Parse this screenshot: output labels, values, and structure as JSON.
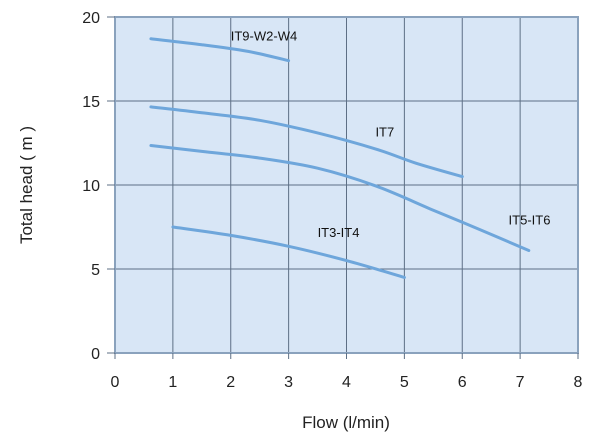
{
  "chart_data": {
    "type": "line",
    "xlabel": "Flow (l/min)",
    "ylabel": "Total head ( m )",
    "xlim": [
      0,
      8
    ],
    "ylim": [
      0,
      20
    ],
    "xticks": [
      "0",
      "1",
      "2",
      "3",
      "4",
      "5",
      "6",
      "7",
      "8"
    ],
    "yticks": [
      "0",
      "5",
      "10",
      "15",
      "20"
    ],
    "grid": true,
    "colors": {
      "plot_bg": "#d8e6f6",
      "grid": "#5d6f85",
      "frame": "#8aa2bd",
      "line": "#6ea6db"
    },
    "series": [
      {
        "name": "IT9-W2-W4",
        "x": [
          0.62,
          1.5,
          2.3,
          3.0
        ],
        "y": [
          18.7,
          18.35,
          17.95,
          17.4
        ],
        "label_at": [
          2.0,
          18.6
        ]
      },
      {
        "name": "IT7",
        "x": [
          0.62,
          1.5,
          2.5,
          3.5,
          4.5,
          5.2,
          6.0
        ],
        "y": [
          14.65,
          14.3,
          13.85,
          13.1,
          12.15,
          11.3,
          10.5
        ],
        "label_at": [
          4.5,
          12.9
        ]
      },
      {
        "name": "IT5-IT6",
        "x": [
          0.62,
          1.5,
          2.5,
          3.5,
          4.5,
          5.5,
          6.3,
          7.15
        ],
        "y": [
          12.35,
          12.0,
          11.6,
          11.0,
          9.95,
          8.5,
          7.35,
          6.1
        ],
        "label_at": [
          6.8,
          7.65
        ]
      },
      {
        "name": "IT3-IT4",
        "x": [
          1.0,
          2.0,
          3.0,
          4.0,
          5.0
        ],
        "y": [
          7.5,
          7.0,
          6.35,
          5.5,
          4.5
        ],
        "label_at": [
          3.5,
          6.9
        ]
      }
    ]
  }
}
